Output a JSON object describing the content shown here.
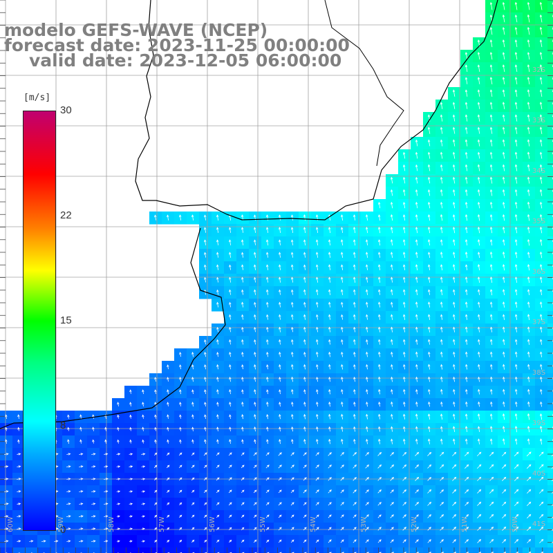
{
  "title": {
    "line1": "modelo GEFS-WAVE (NCEP)",
    "line2": "forecast date: 2023-11-25 00:00:00",
    "line3": "valid date: 2023-12-05 06:00:00"
  },
  "colorbar": {
    "unit": "[m/s]",
    "ticks": [
      {
        "label": "30",
        "value": 30
      },
      {
        "label": "22",
        "value": 22
      },
      {
        "label": "15",
        "value": 15
      },
      {
        "label": "8",
        "value": 8
      },
      {
        "label": "0",
        "value": 0
      }
    ],
    "min": 0,
    "max": 30
  },
  "latitude_labels": [
    "32S",
    "33S",
    "34S",
    "35S",
    "36S",
    "37S",
    "38S",
    "39S",
    "40S",
    "41S"
  ],
  "longitude_labels": [
    "60W",
    "59W",
    "58W",
    "57W",
    "56W",
    "55W",
    "54W",
    "53W",
    "52W",
    "51W",
    "50W"
  ],
  "colors": {
    "land": "#ffffff",
    "grid": "#a0a0a0",
    "coast": "#000000",
    "title": "#808080"
  }
}
